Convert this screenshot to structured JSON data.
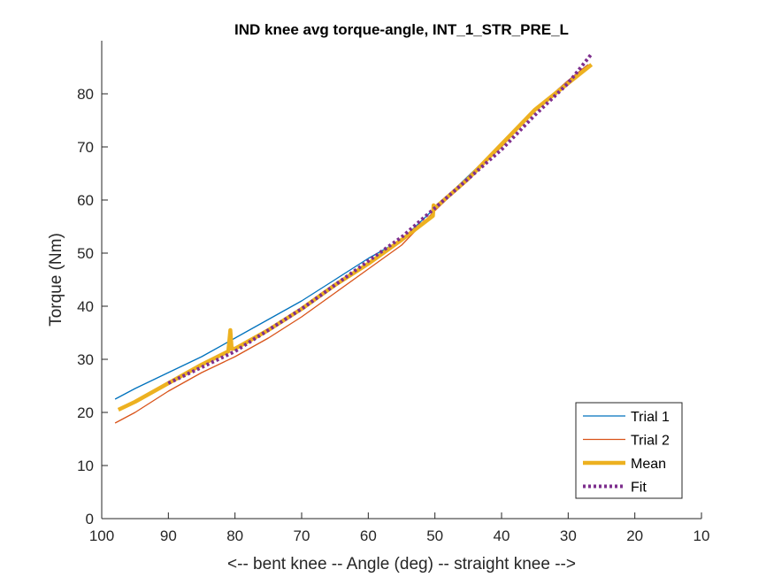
{
  "chart_data": {
    "type": "line",
    "title": "IND knee avg torque-angle, INT_1_STR_PRE_L",
    "xlabel": "<-- bent knee -- Angle (deg) -- straight knee -->",
    "ylabel": "Torque (Nm)",
    "xlim": [
      100,
      10
    ],
    "x_reversed": true,
    "ylim": [
      0,
      90
    ],
    "xticks": [
      100,
      90,
      80,
      70,
      60,
      50,
      40,
      30,
      20,
      10
    ],
    "yticks": [
      0,
      10,
      20,
      30,
      40,
      50,
      60,
      70,
      80
    ],
    "grid": false,
    "legend_position": "bottom-right",
    "series": [
      {
        "name": "Trial 1",
        "color": "#0072BD",
        "style": "solid",
        "x": [
          98,
          95,
          90,
          85,
          80,
          75,
          70,
          65,
          60,
          55,
          50,
          45,
          40,
          35,
          30,
          27
        ],
        "y": [
          22.5,
          24.5,
          27.5,
          30.5,
          34.0,
          37.5,
          41.0,
          45.0,
          49.0,
          52.5,
          58.5,
          64.5,
          70.5,
          77.0,
          82.5,
          85.5
        ]
      },
      {
        "name": "Trial 2",
        "color": "#D95319",
        "style": "solid",
        "x": [
          98,
          95,
          90,
          85,
          80,
          75,
          70,
          65,
          60,
          55,
          50,
          45,
          40,
          35,
          30,
          27
        ],
        "y": [
          18.0,
          20.0,
          24.0,
          27.5,
          30.5,
          34.0,
          38.0,
          42.5,
          47.0,
          51.5,
          58.0,
          64.0,
          70.0,
          77.0,
          82.5,
          85.5
        ]
      },
      {
        "name": "Mean",
        "color": "#EDB120",
        "style": "thick",
        "x": [
          97.5,
          95,
          90,
          85,
          81,
          80.7,
          80.5,
          80,
          75,
          70,
          65,
          60,
          55,
          50.3,
          50.2,
          50,
          45,
          40,
          35,
          30,
          26.5
        ],
        "y": [
          20.5,
          22.0,
          25.5,
          29.0,
          31.5,
          35.5,
          32.0,
          32.0,
          35.5,
          39.5,
          44.0,
          48.0,
          52.5,
          57.0,
          59.0,
          58.5,
          64.0,
          70.5,
          77.0,
          82.0,
          85.5
        ]
      },
      {
        "name": "Fit",
        "color": "#7E2F8E",
        "style": "dotted",
        "x": [
          90,
          85,
          80,
          75,
          70,
          65,
          60,
          55,
          50,
          45,
          40,
          35,
          30,
          26.5
        ],
        "y": [
          25.5,
          28.5,
          31.5,
          35.5,
          39.5,
          44.0,
          48.5,
          53.0,
          58.5,
          64.0,
          69.5,
          76.0,
          82.0,
          87.5
        ]
      }
    ]
  }
}
